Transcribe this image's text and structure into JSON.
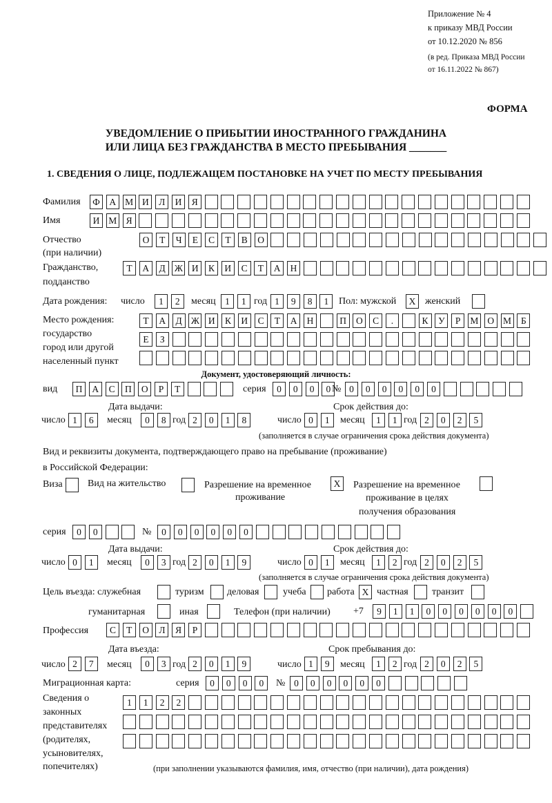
{
  "header": {
    "appendix": "Приложение № 4",
    "order": "к приказу МВД России",
    "order_date": "от 10.12.2020 № 856",
    "edition1": "(в ред. Приказа МВД России",
    "edition2": "от 16.11.2022 № 867)",
    "form": "ФОРМА",
    "title1": "УВЕДОМЛЕНИЕ О ПРИБЫТИИ ИНОСТРАННОГО ГРАЖДАНИНА",
    "title2": "ИЛИ ЛИЦА БЕЗ ГРАЖДАНСТВА В МЕСТО ПРЕБЫВАНИЯ _______",
    "section1": "1. СВЕДЕНИЯ О ЛИЦЕ, ПОДЛЕЖАЩЕМ ПОСТАНОВКЕ НА УЧЕТ ПО МЕСТУ ПРЕБЫВАНИЯ"
  },
  "labels": {
    "surname": "Фамилия",
    "name": "Имя",
    "patronymic": "Отчество",
    "patronymic_note": "(при наличии)",
    "citizenship1": "Гражданство,",
    "citizenship2": "подданство",
    "birth_date": "Дата рождения:",
    "day": "число",
    "month": "месяц",
    "year": "год",
    "sex_male": "Пол: мужской",
    "sex_female": "женский",
    "birthplace1": "Место рождения:",
    "birthplace2": "государство",
    "birthplace3": "город или другой",
    "birthplace4": "населенный пункт",
    "id_doc": "Документ, удостоверяющий личность:",
    "kind": "вид",
    "series": "серия",
    "number": "№",
    "issue_date": "Дата выдачи:",
    "valid_until": "Срок действия до:",
    "validity_note": "(заполняется в случае ограничения срока действия документа)",
    "permit_doc1": "Вид и реквизиты документа, подтверждающего право на пребывание (проживание)",
    "permit_doc2": "в Российской Федерации:",
    "visa": "Виза",
    "residence": "Вид на жительство",
    "temp_res1": "Разрешение на временное",
    "temp_res2": "проживание",
    "temp_edu1": "Разрешение на временное",
    "temp_edu2": "проживание в целях",
    "temp_edu3": "получения образования",
    "purpose": "Цель въезда: служебная",
    "tourism": "туризм",
    "business": "деловая",
    "study": "учеба",
    "work": "работа",
    "private": "частная",
    "transit": "транзит",
    "humanitarian": "гуманитарная",
    "other": "иная",
    "phone": "Телефон (при наличии)",
    "phone_prefix": "+7",
    "profession": "Профессия",
    "entry_date": "Дата въезда:",
    "stay_until": "Срок пребывания до:",
    "migration_card": "Миграционная карта:",
    "reps1": "Сведения о",
    "reps2": "законных",
    "reps3": "представителях",
    "reps4": "(родителях,",
    "reps5": "усыновителях,",
    "reps6": "попечителях)",
    "reps_note": "(при заполнении указываются фамилия, имя, отчество (при наличии), дата рождения)"
  },
  "fields": {
    "surname": [
      "Ф",
      "А",
      "М",
      "И",
      "Л",
      "И",
      "Я",
      "",
      "",
      "",
      "",
      "",
      "",
      "",
      "",
      "",
      "",
      "",
      "",
      "",
      "",
      "",
      "",
      "",
      "",
      "",
      ""
    ],
    "name": [
      "И",
      "М",
      "Я",
      "",
      "",
      "",
      "",
      "",
      "",
      "",
      "",
      "",
      "",
      "",
      "",
      "",
      "",
      "",
      "",
      "",
      "",
      "",
      "",
      "",
      "",
      "",
      ""
    ],
    "patronymic": [
      "О",
      "Т",
      "Ч",
      "Е",
      "С",
      "Т",
      "В",
      "О",
      "",
      "",
      "",
      "",
      "",
      "",
      "",
      "",
      "",
      "",
      "",
      "",
      "",
      "",
      "",
      "",
      ""
    ],
    "citizenship": [
      "Т",
      "А",
      "Д",
      "Ж",
      "И",
      "К",
      "И",
      "С",
      "Т",
      "А",
      "Н",
      "",
      "",
      "",
      "",
      "",
      "",
      "",
      "",
      "",
      "",
      "",
      "",
      "",
      "",
      ""
    ],
    "birth_day": [
      "1",
      "2"
    ],
    "birth_month": [
      "1",
      "1"
    ],
    "birth_year": [
      "1",
      "9",
      "8",
      "1"
    ],
    "sex_male": [
      "X"
    ],
    "sex_female": [
      ""
    ],
    "birthplace1": [
      "Т",
      "А",
      "Д",
      "Ж",
      "И",
      "К",
      "И",
      "С",
      "Т",
      "А",
      "Н",
      "",
      "П",
      "О",
      "С",
      ".",
      "",
      "К",
      "У",
      "Р",
      "М",
      "О",
      "М",
      "Б"
    ],
    "birthplace2": [
      "Е",
      "З",
      "",
      "",
      "",
      "",
      "",
      "",
      "",
      "",
      "",
      "",
      "",
      "",
      "",
      "",
      "",
      "",
      "",
      "",
      "",
      "",
      "",
      ""
    ],
    "birthplace3": [
      "",
      "",
      "",
      "",
      "",
      "",
      "",
      "",
      "",
      "",
      "",
      "",
      "",
      "",
      "",
      "",
      "",
      "",
      "",
      "",
      "",
      "",
      "",
      ""
    ],
    "id_kind": [
      "П",
      "А",
      "С",
      "П",
      "О",
      "Р",
      "Т",
      "",
      "",
      ""
    ],
    "id_series": [
      "0",
      "0",
      "0",
      "0"
    ],
    "id_number": [
      "0",
      "0",
      "0",
      "0",
      "0",
      "0",
      "",
      "",
      "",
      "",
      ""
    ],
    "id_issue_day": [
      "1",
      "6"
    ],
    "id_issue_month": [
      "0",
      "8"
    ],
    "id_issue_year": [
      "2",
      "0",
      "1",
      "8"
    ],
    "id_valid_day": [
      "0",
      "1"
    ],
    "id_valid_month": [
      "1",
      "1"
    ],
    "id_valid_year": [
      "2",
      "0",
      "2",
      "5"
    ],
    "visa": [
      ""
    ],
    "residence": [
      ""
    ],
    "temp_res": [
      "X"
    ],
    "temp_edu": [
      ""
    ],
    "permit_series": [
      "0",
      "0",
      "",
      ""
    ],
    "permit_number": [
      "0",
      "0",
      "0",
      "0",
      "0",
      "0",
      "",
      "",
      "",
      "",
      "",
      "",
      "",
      "",
      ""
    ],
    "permit_issue_day": [
      "0",
      "1"
    ],
    "permit_issue_month": [
      "0",
      "3"
    ],
    "permit_issue_year": [
      "2",
      "0",
      "1",
      "9"
    ],
    "permit_valid_day": [
      "0",
      "1"
    ],
    "permit_valid_month": [
      "1",
      "2"
    ],
    "permit_valid_year": [
      "2",
      "0",
      "2",
      "5"
    ],
    "purpose_official": [
      ""
    ],
    "purpose_tourism": [
      ""
    ],
    "purpose_business": [
      ""
    ],
    "purpose_study": [
      ""
    ],
    "purpose_work": [
      "X"
    ],
    "purpose_private": [
      ""
    ],
    "purpose_transit": [
      ""
    ],
    "purpose_humanitarian": [
      ""
    ],
    "purpose_other": [
      ""
    ],
    "phone": [
      "9",
      "1",
      "1",
      "0",
      "0",
      "0",
      "0",
      "0",
      "0",
      ""
    ],
    "profession": [
      "С",
      "Т",
      "О",
      "Л",
      "Я",
      "Р",
      "",
      "",
      "",
      "",
      "",
      "",
      "",
      "",
      "",
      "",
      "",
      "",
      "",
      "",
      "",
      "",
      "",
      "",
      "",
      ""
    ],
    "entry_day": [
      "2",
      "7"
    ],
    "entry_month": [
      "0",
      "3"
    ],
    "entry_year": [
      "2",
      "0",
      "1",
      "9"
    ],
    "stay_day": [
      "1",
      "9"
    ],
    "stay_month": [
      "1",
      "2"
    ],
    "stay_year": [
      "2",
      "0",
      "2",
      "5"
    ],
    "mc_series": [
      "0",
      "0",
      "0",
      "0"
    ],
    "mc_number": [
      "0",
      "0",
      "0",
      "0",
      "0",
      "0",
      "",
      "",
      "",
      "",
      ""
    ],
    "reps1": [
      "1",
      "1",
      "2",
      "2",
      "",
      "",
      "",
      "",
      "",
      "",
      "",
      "",
      "",
      "",
      "",
      "",
      "",
      "",
      "",
      "",
      "",
      "",
      "",
      "",
      ""
    ],
    "reps2": [
      "",
      "",
      "",
      "",
      "",
      "",
      "",
      "",
      "",
      "",
      "",
      "",
      "",
      "",
      "",
      "",
      "",
      "",
      "",
      "",
      "",
      "",
      "",
      "",
      ""
    ],
    "reps3": [
      "",
      "",
      "",
      "",
      "",
      "",
      "",
      "",
      "",
      "",
      "",
      "",
      "",
      "",
      "",
      "",
      "",
      "",
      "",
      "",
      "",
      "",
      "",
      "",
      ""
    ]
  }
}
